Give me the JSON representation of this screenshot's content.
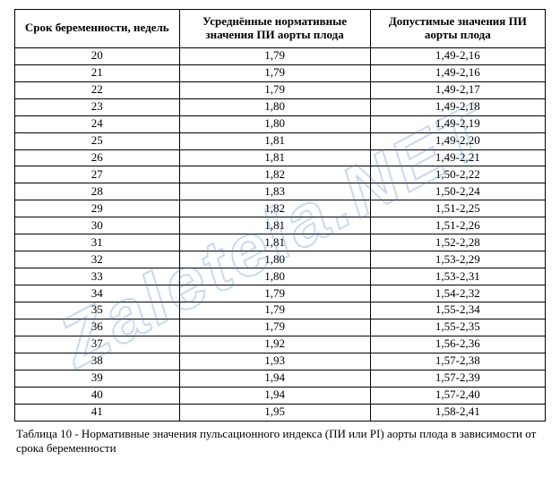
{
  "table": {
    "columns": [
      "Срок беременности, недель",
      "Усреднённые нормативные значения ПИ аорты плода",
      "Допустимые значения ПИ аорты плода"
    ],
    "rows": [
      [
        "20",
        "1,79",
        "1,49-2,16"
      ],
      [
        "21",
        "1,79",
        "1,49-2,16"
      ],
      [
        "22",
        "1,79",
        "1,49-2,17"
      ],
      [
        "23",
        "1,80",
        "1,49-2,18"
      ],
      [
        "24",
        "1,80",
        "1,49-2,19"
      ],
      [
        "25",
        "1,81",
        "1,49-2,20"
      ],
      [
        "26",
        "1,81",
        "1,49-2,21"
      ],
      [
        "27",
        "1,82",
        "1,50-2,22"
      ],
      [
        "28",
        "1,83",
        "1,50-2,24"
      ],
      [
        "29",
        "1,82",
        "1,51-2,25"
      ],
      [
        "30",
        "1,81",
        "1,51-2,26"
      ],
      [
        "31",
        "1,81",
        "1,52-2,28"
      ],
      [
        "32",
        "1,80",
        "1,53-2,29"
      ],
      [
        "33",
        "1,80",
        "1,53-2,31"
      ],
      [
        "34",
        "1,79",
        "1,54-2,32"
      ],
      [
        "35",
        "1,79",
        "1,55-2,34"
      ],
      [
        "36",
        "1,79",
        "1,55-2,35"
      ],
      [
        "37",
        "1,92",
        "1,56-2,36"
      ],
      [
        "38",
        "1,93",
        "1,57-2,38"
      ],
      [
        "39",
        "1,94",
        "1,57-2,39"
      ],
      [
        "40",
        "1,94",
        "1,57-2,40"
      ],
      [
        "41",
        "1,95",
        "1,58-2,41"
      ]
    ],
    "border_color": "#000000",
    "background_color": "#ffffff",
    "header_fontsize": 13,
    "cell_fontsize": 13,
    "font_family": "Times New Roman"
  },
  "caption": "Таблица 10 - Нормативные значения пульсационного индекса (ПИ или PI) аорты плода в зависимости от срока беременности",
  "watermark": {
    "text": "Zaletela.NET",
    "color": "#3a7abf",
    "opacity": 0.28,
    "rotation": -28
  }
}
